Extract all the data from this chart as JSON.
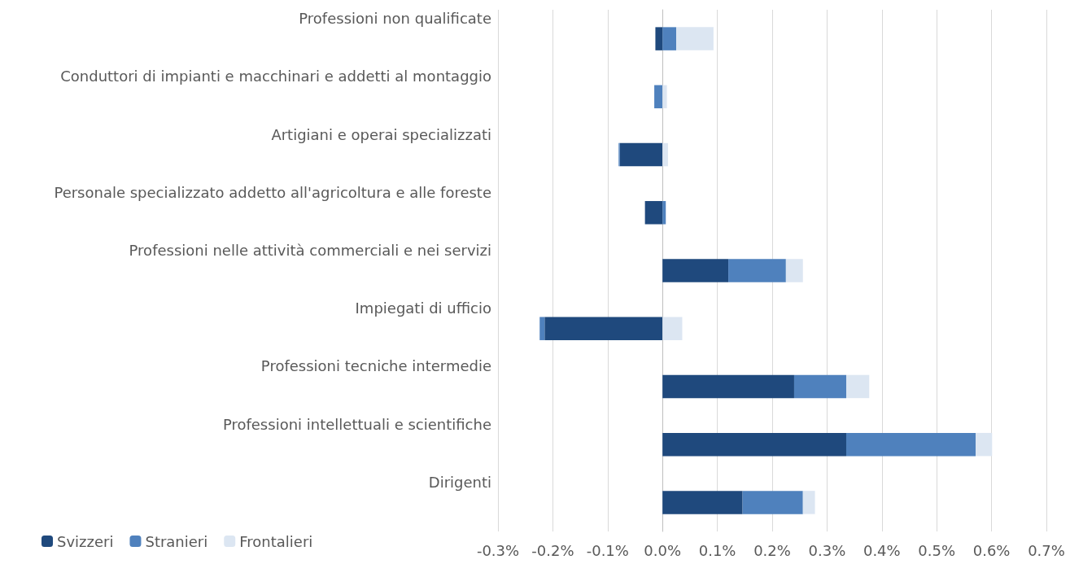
{
  "chart_data": {
    "type": "bar",
    "orientation": "horizontal",
    "stacked": true,
    "categories": [
      "Professioni non qualificate",
      "Conduttori di impianti e macchinari e addetti al montaggio",
      "Artigiani e operai specializzati",
      "Personale specializzato addetto all'agricoltura e alle foreste",
      "Professioni nelle attività commerciali e nei servizi",
      "Impiegati di ufficio",
      "Professioni tecniche intermedie",
      "Professioni intellettuali e scientifiche",
      "Dirigenti"
    ],
    "series": [
      {
        "name": "Svizzeri",
        "color": "#1f497d",
        "values": [
          -0.013,
          0,
          -0.078,
          -0.032,
          0.12,
          -0.215,
          0.24,
          0.335,
          0.146
        ]
      },
      {
        "name": "Stranieri",
        "color": "#4f81bd",
        "values": [
          0.025,
          -0.015,
          -0.002,
          0.006,
          0.105,
          -0.009,
          0.095,
          0.236,
          0.11
        ]
      },
      {
        "name": "Frontalieri",
        "color": "#dce6f2",
        "values": [
          0.068,
          0.008,
          0.01,
          0,
          0.031,
          0.036,
          0.042,
          0.03,
          0.022
        ]
      }
    ],
    "xlim": [
      -0.3,
      0.7
    ],
    "xticks": [
      {
        "value": -0.3,
        "label": "-0.3%"
      },
      {
        "value": -0.2,
        "label": "-0.2%"
      },
      {
        "value": -0.1,
        "label": "-0.1%"
      },
      {
        "value": 0,
        "label": "0.0%"
      },
      {
        "value": 0.1,
        "label": "0.1%"
      },
      {
        "value": 0.2,
        "label": "0.2%"
      },
      {
        "value": 0.3,
        "label": "0.3%"
      },
      {
        "value": 0.4,
        "label": "0.4%"
      },
      {
        "value": 0.5,
        "label": "0.5%"
      },
      {
        "value": 0.6,
        "label": "0.6%"
      },
      {
        "value": 0.7,
        "label": "0.7%"
      }
    ],
    "grid": "x",
    "legend": "bottom left"
  }
}
